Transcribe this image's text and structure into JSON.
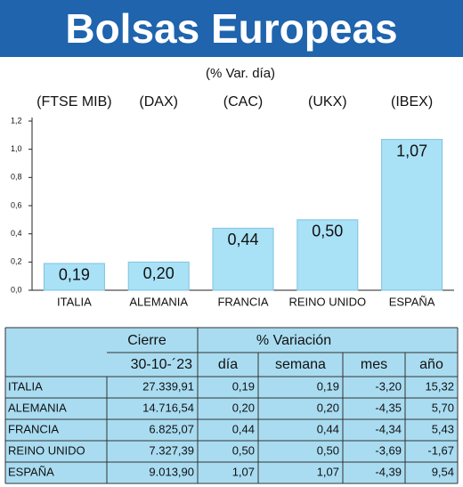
{
  "chart_data": {
    "type": "bar",
    "title": "Bolsas Europeas",
    "subtitle": "(% Var. día)",
    "category_codes": [
      "(FTSE MIB)",
      "(DAX)",
      "(CAC)",
      "(UKX)",
      "(IBEX)"
    ],
    "categories": [
      "ITALIA",
      "ALEMANIA",
      "FRANCIA",
      "REINO UNIDO",
      "ESPAÑA"
    ],
    "values": [
      0.19,
      0.2,
      0.44,
      0.5,
      1.07
    ],
    "value_labels": [
      "0,19",
      "0,20",
      "0,44",
      "0,50",
      "1,07"
    ],
    "color": "#a9e1f6",
    "ylim": [
      0,
      1.2
    ],
    "yticks": [
      {
        "value": 0,
        "label": "0,0"
      },
      {
        "value": 0.2,
        "label": "0,2"
      },
      {
        "value": 0.4,
        "label": "0,4"
      },
      {
        "value": 0.6,
        "label": "0,6"
      },
      {
        "value": 0.8,
        "label": "0,8"
      },
      {
        "value": 1.0,
        "label": "1,0"
      },
      {
        "value": 1.2,
        "label": "1,2"
      }
    ]
  },
  "table": {
    "group_headers": [
      "Cierre",
      "% Variación"
    ],
    "columns": [
      "30-10-´23",
      "día",
      "semana",
      "mes",
      "año"
    ],
    "rows": [
      [
        "ITALIA",
        "27.339,91",
        "0,19",
        "0,19",
        "-3,20",
        "15,32"
      ],
      [
        "ALEMANIA",
        "14.716,54",
        "0,20",
        "0,20",
        "-4,35",
        "5,70"
      ],
      [
        "FRANCIA",
        "6.825,07",
        "0,44",
        "0,44",
        "-4,34",
        "5,43"
      ],
      [
        "REINO UNIDO",
        "7.327,39",
        "0,50",
        "0,50",
        "-3,69",
        "-1,67"
      ],
      [
        "ESPAÑA",
        "9.013,90",
        "1,07",
        "1,07",
        "-4,39",
        "9,54"
      ]
    ]
  }
}
